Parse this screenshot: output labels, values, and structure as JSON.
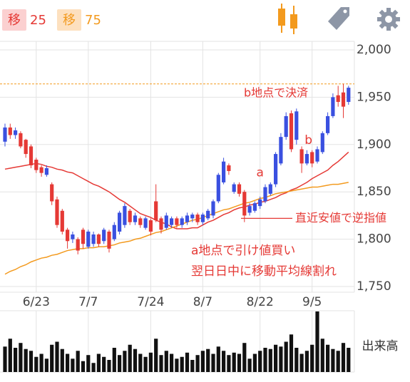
{
  "chart_data": {
    "type": "candlestick",
    "legend": [
      {
        "label": "移",
        "period": 25,
        "color": "#e53935",
        "bg": "#fbd0d0"
      },
      {
        "label": "移",
        "period": 75,
        "color": "#f39a1e",
        "bg": "#fde0bf"
      }
    ],
    "categories": [
      null,
      null,
      null,
      null,
      null,
      null,
      "6/23",
      null,
      null,
      null,
      null,
      null,
      null,
      null,
      null,
      null,
      "7/7",
      null,
      null,
      null,
      null,
      null,
      null,
      null,
      null,
      null,
      null,
      null,
      "7/24",
      null,
      null,
      null,
      null,
      null,
      null,
      null,
      null,
      null,
      "8/7",
      null,
      null,
      null,
      null,
      null,
      null,
      null,
      null,
      null,
      null,
      "8/22",
      null,
      null,
      null,
      null,
      null,
      null,
      null,
      null,
      null,
      "9/5",
      null,
      null,
      null,
      null,
      null,
      null,
      null
    ],
    "open": [
      1903,
      1918,
      1910,
      1912,
      1905,
      1898,
      1884,
      1876,
      1868,
      1858,
      1842,
      1830,
      1810,
      1800,
      1800,
      1810,
      1792,
      1795,
      1805,
      1798,
      1808,
      1800,
      1808,
      1815,
      1830,
      1818,
      1822,
      1812,
      1820,
      1840,
      1822,
      1812,
      1815,
      1822,
      1815,
      1818,
      1822,
      1826,
      1818,
      1822,
      1825,
      1840,
      1860,
      1878,
      1850,
      1858,
      1850,
      1828,
      1830,
      1835,
      1840,
      1848,
      1858,
      1880,
      1908,
      1933,
      1905,
      1895,
      1880,
      1892,
      1882,
      1892,
      1912,
      1930,
      1952,
      1955,
      1945
    ],
    "high": [
      1922,
      1922,
      1918,
      1914,
      1906,
      1900,
      1886,
      1878,
      1878,
      1860,
      1845,
      1832,
      1812,
      1808,
      1802,
      1812,
      1810,
      1808,
      1806,
      1812,
      1810,
      1818,
      1830,
      1838,
      1832,
      1828,
      1824,
      1824,
      1822,
      1858,
      1824,
      1828,
      1824,
      1824,
      1824,
      1828,
      1828,
      1828,
      1828,
      1832,
      1842,
      1870,
      1886,
      1880,
      1860,
      1860,
      1852,
      1838,
      1840,
      1845,
      1858,
      1860,
      1892,
      1912,
      1934,
      1936,
      1938,
      1898,
      1894,
      1894,
      1898,
      1914,
      1934,
      1954,
      1962,
      1964,
      1962
    ],
    "low": [
      1898,
      1906,
      1906,
      1896,
      1886,
      1875,
      1870,
      1866,
      1866,
      1836,
      1812,
      1805,
      1790,
      1796,
      1784,
      1790,
      1790,
      1792,
      1792,
      1795,
      1786,
      1798,
      1805,
      1812,
      1815,
      1815,
      1812,
      1810,
      1804,
      1818,
      1806,
      1810,
      1812,
      1812,
      1812,
      1815,
      1818,
      1815,
      1815,
      1820,
      1822,
      1838,
      1858,
      1868,
      1848,
      1845,
      1818,
      1825,
      1828,
      1832,
      1838,
      1846,
      1855,
      1878,
      1905,
      1892,
      1900,
      1870,
      1878,
      1876,
      1880,
      1890,
      1910,
      1928,
      1940,
      1928,
      1942
    ],
    "close": [
      1918,
      1910,
      1915,
      1898,
      1890,
      1878,
      1873,
      1870,
      1875,
      1840,
      1815,
      1808,
      1798,
      1805,
      1788,
      1795,
      1808,
      1805,
      1795,
      1810,
      1790,
      1815,
      1828,
      1835,
      1818,
      1825,
      1815,
      1822,
      1808,
      1820,
      1810,
      1825,
      1822,
      1815,
      1822,
      1825,
      1826,
      1818,
      1826,
      1830,
      1840,
      1868,
      1882,
      1872,
      1858,
      1848,
      1825,
      1835,
      1838,
      1842,
      1855,
      1858,
      1890,
      1908,
      1930,
      1895,
      1935,
      1880,
      1890,
      1880,
      1895,
      1912,
      1930,
      1950,
      1945,
      1940,
      1960
    ],
    "up_color": "#3a50e0",
    "down_color": "#e53935",
    "series": [
      {
        "name": "移 25",
        "color": "#e53935",
        "values": [
          1874,
          1875,
          1876,
          1877,
          1878,
          1879,
          1880,
          1879,
          1877,
          1876,
          1874,
          1873,
          1871,
          1870,
          1867,
          1864,
          1861,
          1858,
          1856,
          1853,
          1850,
          1846,
          1842,
          1839,
          1835,
          1831,
          1827,
          1825,
          1823,
          1820,
          1818,
          1816,
          1813,
          1811,
          1811,
          1811,
          1812,
          1812,
          1815,
          1818,
          1820,
          1823,
          1826,
          1828,
          1831,
          1833,
          1834,
          1836,
          1837,
          1839,
          1840,
          1842,
          1844,
          1847,
          1849,
          1852,
          1854,
          1857,
          1860,
          1864,
          1867,
          1870,
          1873,
          1878,
          1882,
          1887,
          1892
        ]
      },
      {
        "name": "移 75",
        "color": "#f39a1e",
        "values": [
          1763,
          1766,
          1768,
          1771,
          1773,
          1776,
          1778,
          1780,
          1781,
          1783,
          1784,
          1786,
          1788,
          1789,
          1790,
          1790,
          1791,
          1791,
          1792,
          1792,
          1793,
          1794,
          1796,
          1797,
          1798,
          1800,
          1801,
          1803,
          1805,
          1807,
          1808,
          1810,
          1812,
          1814,
          1816,
          1818,
          1820,
          1821,
          1823,
          1825,
          1827,
          1829,
          1831,
          1832,
          1834,
          1836,
          1838,
          1839,
          1841,
          1843,
          1844,
          1846,
          1848,
          1849,
          1850,
          1851,
          1852,
          1853,
          1854,
          1855,
          1855,
          1856,
          1857,
          1858,
          1858,
          1859,
          1860
        ]
      }
    ],
    "ylim": [
      1744,
      2009
    ],
    "yticks": [
      {
        "value": 1750,
        "label": "1,750"
      },
      {
        "value": 1800,
        "label": "1,800"
      },
      {
        "value": 1850,
        "label": "1,850"
      },
      {
        "value": 1900,
        "label": "1,900"
      },
      {
        "value": 1950,
        "label": "1,950"
      },
      {
        "value": 2000,
        "label": "2,000"
      }
    ],
    "grid": true,
    "volume": {
      "label": "出来高",
      "color": "#111111",
      "ylim": [
        0,
        100
      ],
      "values": [
        42,
        55,
        40,
        48,
        38,
        35,
        25,
        30,
        22,
        45,
        50,
        38,
        30,
        22,
        35,
        18,
        28,
        15,
        30,
        25,
        20,
        40,
        28,
        35,
        45,
        38,
        30,
        25,
        32,
        55,
        28,
        35,
        30,
        22,
        25,
        32,
        20,
        28,
        35,
        38,
        30,
        42,
        35,
        28,
        32,
        30,
        48,
        22,
        30,
        35,
        40,
        38,
        45,
        42,
        50,
        62,
        40,
        30,
        35,
        45,
        100,
        55,
        45,
        38,
        35,
        48,
        40
      ]
    },
    "annotations": {
      "exit_level": 1964,
      "exit_text": "b地点で決済",
      "stop_level": 1822,
      "stop_text": "直近安値で逆指値",
      "point_a": "a",
      "point_b": "b",
      "note_lines": [
        "a地点で引け値買い",
        "翌日日中に移動平均線割れ"
      ]
    }
  }
}
